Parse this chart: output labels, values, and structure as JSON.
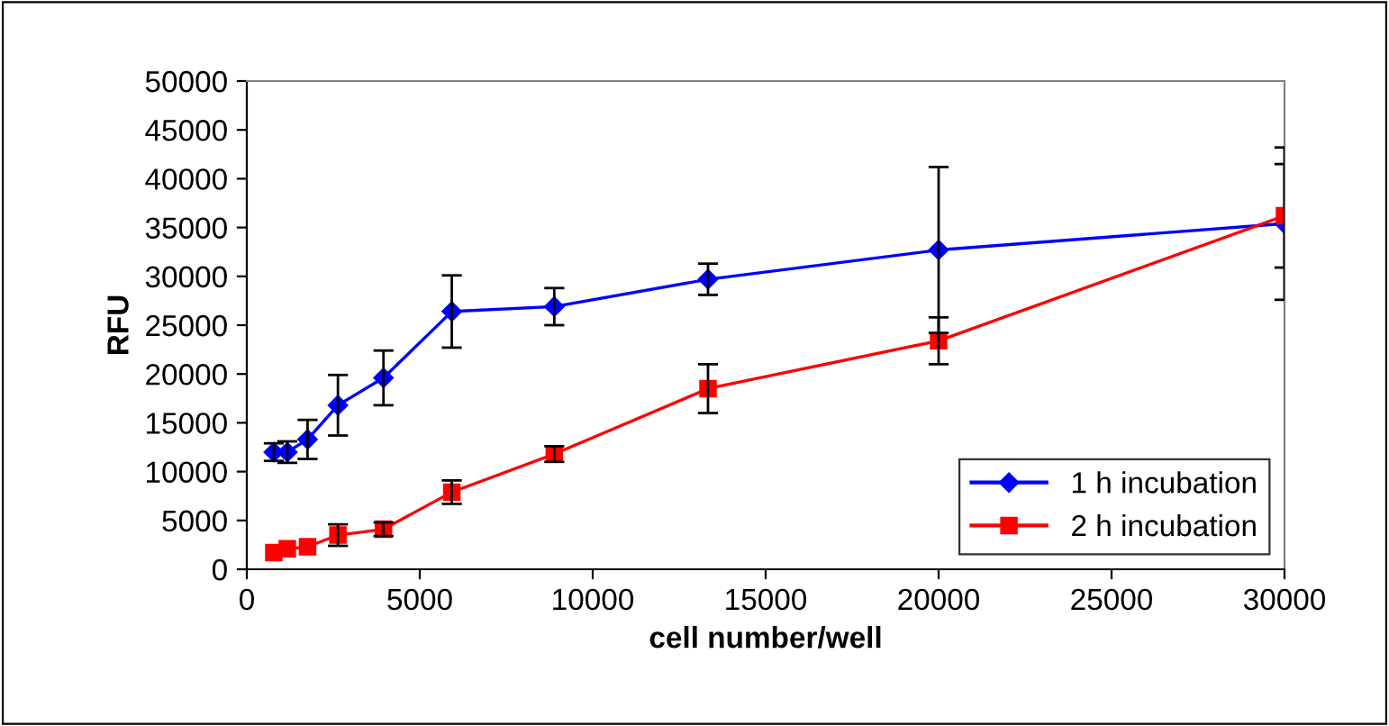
{
  "chart_data": {
    "type": "line",
    "xlabel": "cell number/well",
    "ylabel": "RFU",
    "x": [
      780,
      1171,
      1756,
      2634,
      3951,
      5926,
      8889,
      13333,
      20000,
      30000
    ],
    "series": [
      {
        "name": "1 h incubation",
        "color": "#0000ff",
        "marker": "diamond",
        "values": [
          12000,
          12000,
          13300,
          16800,
          19600,
          26400,
          26900,
          29700,
          32700,
          35400
        ],
        "errors": [
          900,
          1100,
          2000,
          3100,
          2800,
          3700,
          1900,
          1600,
          8500,
          7800
        ]
      },
      {
        "name": "2 h incubation",
        "color": "#ff0000",
        "marker": "square",
        "values": [
          1700,
          2100,
          2300,
          3500,
          4100,
          7900,
          11800,
          18500,
          23400,
          36200
        ],
        "errors": [
          null,
          null,
          null,
          1100,
          700,
          1200,
          800,
          2500,
          2400,
          5300
        ]
      }
    ],
    "xlim": [
      0,
      30000
    ],
    "xticks": [
      0,
      5000,
      10000,
      15000,
      20000,
      25000,
      30000
    ],
    "ylim": [
      0,
      50000
    ],
    "yticks": [
      0,
      5000,
      10000,
      15000,
      20000,
      25000,
      30000,
      35000,
      40000,
      45000,
      50000
    ],
    "grid": false,
    "legend": "bottom right",
    "line_style": "solid"
  }
}
